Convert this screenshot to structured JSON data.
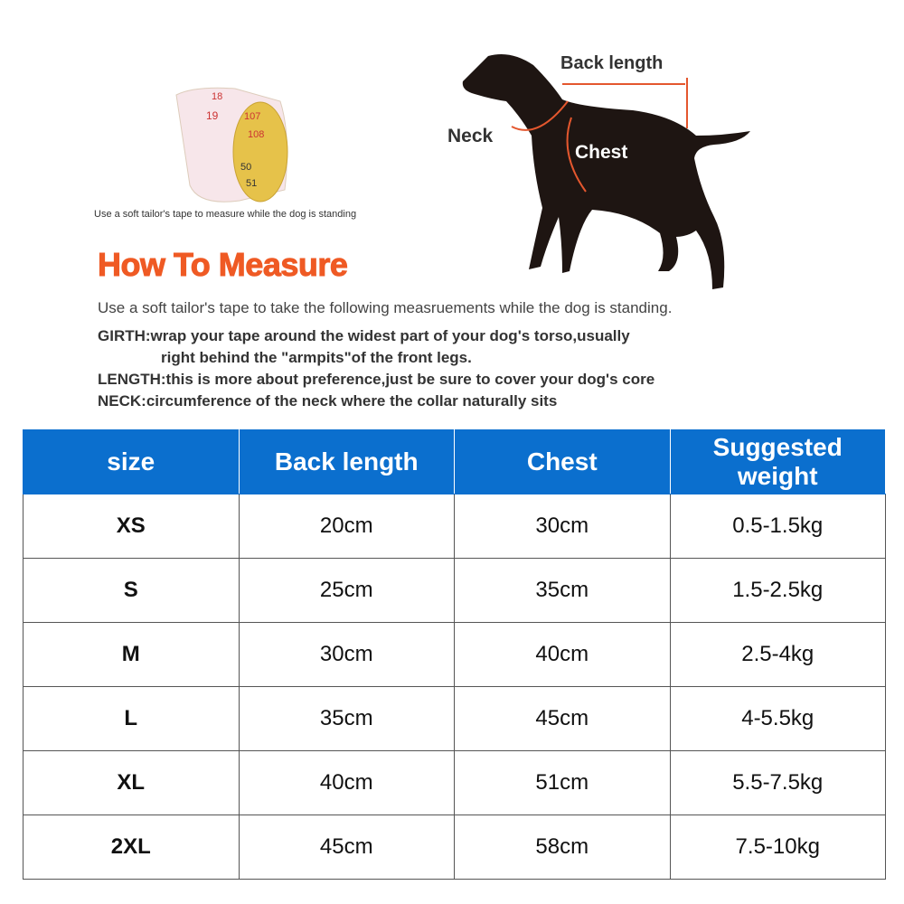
{
  "tape": {
    "numbers": [
      "18",
      "19",
      "107",
      "108",
      "50",
      "51"
    ],
    "caption": "Use a soft tailor's tape to measure while the dog is standing"
  },
  "dog": {
    "back_length": "Back length",
    "neck": "Neck",
    "chest": "Chest"
  },
  "heading": "How To Measure",
  "intro": "Use a soft tailor's tape to take the following measruements while the dog is standing.",
  "notes": [
    {
      "term": "GIRTH:",
      "lines": [
        "wrap your tape around the widest part of your dog's torso,usually",
        "right behind the \"armpits\"of the front legs."
      ]
    },
    {
      "term": "LENGTH:",
      "lines": [
        "this is more about preference,just be sure to cover your dog's core"
      ]
    },
    {
      "term": "NECK:",
      "lines": [
        "circumference of the neck where the collar naturally sits"
      ]
    }
  ],
  "table": {
    "header": [
      "size",
      "Back length",
      "Chest",
      "Suggested weight"
    ],
    "rows": [
      [
        "XS",
        "20cm",
        "30cm",
        "0.5-1.5kg"
      ],
      [
        "S",
        "25cm",
        "35cm",
        "1.5-2.5kg"
      ],
      [
        "M",
        "30cm",
        "40cm",
        "2.5-4kg"
      ],
      [
        "L",
        "35cm",
        "45cm",
        "4-5.5kg"
      ],
      [
        "XL",
        "40cm",
        "51cm",
        "5.5-7.5kg"
      ],
      [
        "2XL",
        "45cm",
        "58cm",
        "7.5-10kg"
      ]
    ]
  }
}
